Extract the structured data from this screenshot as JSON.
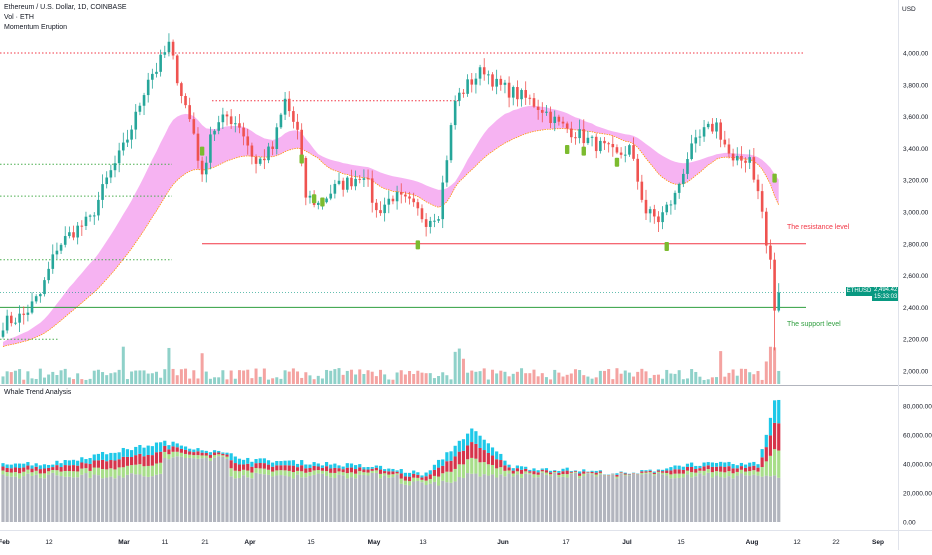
{
  "header": {
    "symbol_line": "Ethereum / U.S. Dollar, 1D, COINBASE",
    "vol_line": "Vol · ETH",
    "study_line": "Momentum Eruption"
  },
  "lower_pane": {
    "title": "Whale Trend Analysis"
  },
  "price_axis": {
    "unit": "USD",
    "ticks": [
      "4,000.00",
      "3,800.00",
      "3,600.00",
      "3,400.00",
      "3,200.00",
      "3,000.00",
      "2,800.00",
      "2,600.00",
      "2,400.00",
      "2,200.00",
      "2,000.00"
    ]
  },
  "volume_axis": {
    "ticks": [
      "80,000.00",
      "60,000.00",
      "40,000.00",
      "20,000.00",
      "0.00"
    ]
  },
  "time_axis": {
    "ticks": [
      "Feb",
      "12",
      "Mar",
      "11",
      "21",
      "Apr",
      "15",
      "May",
      "13",
      "Jun",
      "17",
      "Jul",
      "15",
      "Aug",
      "12",
      "22",
      "Sep"
    ]
  },
  "last_price": {
    "symbol": "ETHUSD",
    "price": "2,494.42",
    "countdown": "15:33:03"
  },
  "annotations": {
    "resistance": "The resistance level",
    "support": "The support level"
  },
  "colors": {
    "up": "#26a69a",
    "down": "#ef5350",
    "bull_vol": "#8fd1c9",
    "bear_vol": "#f4a3a1",
    "resistance": "#f23645",
    "support": "#2e9e3e",
    "cloud": "#f4a6f0",
    "cloud_edge": "#ff9800",
    "whale_cyan": "#1ec8e8",
    "whale_red": "#d6344b",
    "whale_green": "#a8de8a",
    "whale_gray": "#b2b5be"
  },
  "chart_data": [
    {
      "type": "candlestick",
      "title": "Ethereum / U.S. Dollar, 1D, COINBASE",
      "ylim": [
        1950,
        4150
      ],
      "horizontal_levels": [
        {
          "value": 4000,
          "style": "dotted",
          "color": "#f23645"
        },
        {
          "value": 3700,
          "style": "dotted",
          "color": "#f23645"
        },
        {
          "value": 3300,
          "style": "dotted",
          "color": "#4caf50"
        },
        {
          "value": 3100,
          "style": "dotted",
          "color": "#4caf50"
        },
        {
          "value": 2700,
          "style": "dotted",
          "color": "#4caf50"
        },
        {
          "value": 2200,
          "style": "dotted",
          "color": "#4caf50"
        },
        {
          "value": 2800,
          "style": "solid",
          "color": "#f23645",
          "label": "The resistance level"
        },
        {
          "value": 2400,
          "style": "solid",
          "color": "#2e9e3e",
          "label": "The support level"
        }
      ],
      "close_path": [
        [
          "Feb 1",
          2300
        ],
        [
          "Feb 6",
          2350
        ],
        [
          "Feb 10",
          2480
        ],
        [
          "Feb 14",
          2780
        ],
        [
          "Feb 18",
          2880
        ],
        [
          "Feb 22",
          2950
        ],
        [
          "Feb 26",
          3200
        ],
        [
          "Mar 1",
          3400
        ],
        [
          "Mar 4",
          3600
        ],
        [
          "Mar 7",
          3850
        ],
        [
          "Mar 9",
          3900
        ],
        [
          "Mar 12",
          4050
        ],
        [
          "Mar 15",
          3750
        ],
        [
          "Mar 18",
          3500
        ],
        [
          "Mar 20",
          3200
        ],
        [
          "Mar 22",
          3500
        ],
        [
          "Mar 26",
          3600
        ],
        [
          "Mar 29",
          3550
        ],
        [
          "Apr 2",
          3300
        ],
        [
          "Apr 6",
          3400
        ],
        [
          "Apr 9",
          3700
        ],
        [
          "Apr 12",
          3500
        ],
        [
          "Apr 14",
          3100
        ],
        [
          "Apr 17",
          3050
        ],
        [
          "Apr 21",
          3150
        ],
        [
          "Apr 25",
          3200
        ],
        [
          "Apr 28",
          3250
        ],
        [
          "May 1",
          3000
        ],
        [
          "May 5",
          3100
        ],
        [
          "May 9",
          3050
        ],
        [
          "May 13",
          2950
        ],
        [
          "May 16",
          3000
        ],
        [
          "May 20",
          3700
        ],
        [
          "May 23",
          3800
        ],
        [
          "May 27",
          3900
        ],
        [
          "May 30",
          3800
        ],
        [
          "Jun 3",
          3750
        ],
        [
          "Jun 7",
          3700
        ],
        [
          "Jun 10",
          3650
        ],
        [
          "Jun 14",
          3550
        ],
        [
          "Jun 18",
          3500
        ],
        [
          "Jun 21",
          3450
        ],
        [
          "Jun 25",
          3400
        ],
        [
          "Jun 28",
          3350
        ],
        [
          "Jul 1",
          3400
        ],
        [
          "Jul 5",
          3000
        ],
        [
          "Jul 8",
          2950
        ],
        [
          "Jul 12",
          3100
        ],
        [
          "Jul 15",
          3350
        ],
        [
          "Jul 19",
          3500
        ],
        [
          "Jul 22",
          3550
        ],
        [
          "Jul 26",
          3300
        ],
        [
          "Jul 30",
          3350
        ],
        [
          "Aug 2",
          3000
        ],
        [
          "Aug 5",
          2350
        ],
        [
          "Aug 6",
          2494
        ]
      ]
    },
    {
      "type": "bar",
      "title": "Whale Trend Analysis",
      "ylim": [
        0,
        90000
      ],
      "series_names_shown": false,
      "x": [
        "Feb 1",
        "Feb 12",
        "Mar 11",
        "Mar 21",
        "Apr 1",
        "Apr 15",
        "May 1",
        "May 13",
        "May 24",
        "Jun 3",
        "Jun 17",
        "Jul 1",
        "Jul 15",
        "Aug 1",
        "Aug 5"
      ],
      "total": [
        41000,
        40000,
        55000,
        50000,
        43000,
        41000,
        38000,
        33000,
        64000,
        38000,
        36000,
        33000,
        40000,
        40000,
        83000
      ]
    }
  ]
}
